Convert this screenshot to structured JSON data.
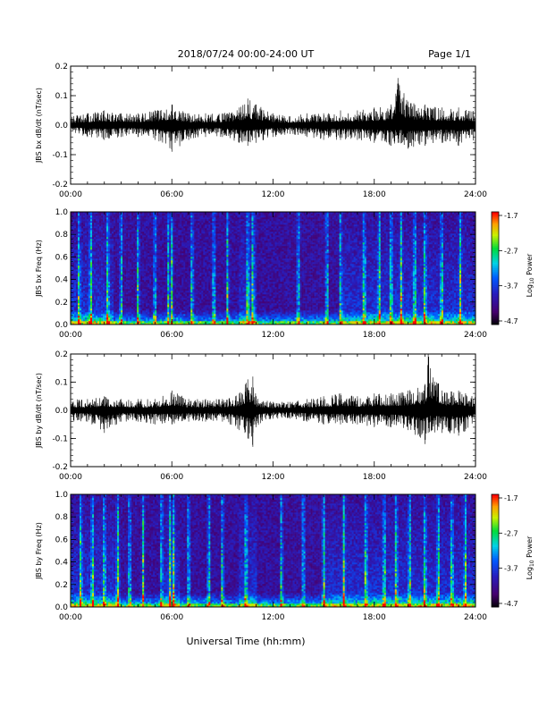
{
  "header": {
    "title": "2018/07/24  00:00-24:00 UT",
    "page": "Page 1/1"
  },
  "footer": {
    "xlabel": "Universal Time (hh:mm)"
  },
  "x_ticks": [
    "00:00",
    "06:00",
    "12:00",
    "18:00",
    "24:00"
  ],
  "chart_data": [
    {
      "type": "line",
      "ylabel": "JBS bx dB/dt (nT/sec)",
      "xlim_hours": [
        0,
        24
      ],
      "ylim": [
        -0.2,
        0.2
      ],
      "y_ticks": [
        "0.2",
        "0.1",
        "0.0",
        "-0.1",
        "-0.2"
      ],
      "grid": false,
      "series": [
        {
          "envelope_hours": [
            0,
            1,
            2,
            3,
            4,
            5,
            6,
            7,
            8,
            9,
            10,
            10.5,
            11,
            12,
            13,
            14,
            15,
            16,
            17,
            18,
            19,
            19.4,
            20,
            21,
            22,
            23,
            24
          ],
          "max": [
            0.03,
            0.04,
            0.05,
            0.04,
            0.04,
            0.05,
            0.07,
            0.04,
            0.04,
            0.04,
            0.06,
            0.09,
            0.07,
            0.04,
            0.03,
            0.04,
            0.04,
            0.05,
            0.05,
            0.06,
            0.07,
            0.16,
            0.08,
            0.07,
            0.06,
            0.06,
            0.05
          ],
          "min": [
            -0.03,
            -0.04,
            -0.05,
            -0.04,
            -0.04,
            -0.05,
            -0.09,
            -0.05,
            -0.04,
            -0.04,
            -0.06,
            -0.07,
            -0.06,
            -0.04,
            -0.03,
            -0.04,
            -0.05,
            -0.05,
            -0.05,
            -0.06,
            -0.07,
            -0.06,
            -0.08,
            -0.07,
            -0.06,
            -0.07,
            -0.05
          ]
        }
      ]
    },
    {
      "type": "heatmap",
      "ylabel": "JBS bx Freq (Hz)",
      "xlim_hours": [
        0,
        24
      ],
      "ylim": [
        0,
        1.0
      ],
      "y_ticks": [
        "1.0",
        "0.8",
        "0.6",
        "0.4",
        "0.2",
        "0.0"
      ],
      "colorbar": {
        "label": "Log10 Power",
        "label_base": "Log",
        "label_sub": "10",
        "label_rest": " Power",
        "ticks": [
          "-1.7",
          "-2.7",
          "-3.7",
          "-4.7"
        ],
        "range": [
          -4.7,
          -1.7
        ]
      },
      "event_hours": [
        0.5,
        1.2,
        2.2,
        3.0,
        4.0,
        5.0,
        5.8,
        6.0,
        7.2,
        8.5,
        9.3,
        10.5,
        10.8,
        13.5,
        15.2,
        16.0,
        17.4,
        18.3,
        19.0,
        19.6,
        20.4,
        21.0,
        22.0,
        23.1
      ],
      "active_intervals_hours": [
        [
          0,
          2.5
        ],
        [
          10,
          11
        ],
        [
          16,
          24
        ]
      ]
    },
    {
      "type": "line",
      "ylabel": "JBS by dB/dt (nT/sec)",
      "xlim_hours": [
        0,
        24
      ],
      "ylim": [
        -0.2,
        0.2
      ],
      "y_ticks": [
        "0.2",
        "0.1",
        "0.0",
        "-0.1",
        "-0.2"
      ],
      "grid": false,
      "series": [
        {
          "envelope_hours": [
            0,
            1,
            2,
            3,
            4,
            5,
            6,
            7,
            8,
            9,
            10,
            10.5,
            10.8,
            11,
            12,
            13,
            14,
            15,
            16,
            17,
            18,
            19,
            20,
            21,
            21.2,
            22,
            23,
            24
          ],
          "max": [
            0.04,
            0.04,
            0.05,
            0.04,
            0.04,
            0.04,
            0.07,
            0.04,
            0.04,
            0.04,
            0.06,
            0.11,
            0.12,
            0.05,
            0.03,
            0.03,
            0.04,
            0.05,
            0.06,
            0.05,
            0.06,
            0.06,
            0.07,
            0.09,
            0.2,
            0.07,
            0.07,
            0.05
          ],
          "min": [
            -0.04,
            -0.04,
            -0.08,
            -0.04,
            -0.04,
            -0.05,
            -0.05,
            -0.04,
            -0.04,
            -0.04,
            -0.07,
            -0.1,
            -0.13,
            -0.06,
            -0.03,
            -0.03,
            -0.04,
            -0.05,
            -0.05,
            -0.05,
            -0.06,
            -0.06,
            -0.07,
            -0.12,
            -0.08,
            -0.08,
            -0.09,
            -0.05
          ]
        }
      ]
    },
    {
      "type": "heatmap",
      "ylabel": "JBS by Freq (Hz)",
      "xlim_hours": [
        0,
        24
      ],
      "ylim": [
        0,
        1.0
      ],
      "y_ticks": [
        "1.0",
        "0.8",
        "0.6",
        "0.4",
        "0.2",
        "0.0"
      ],
      "colorbar": {
        "label": "Log10 Power",
        "label_base": "Log",
        "label_sub": "10",
        "label_rest": " Power",
        "ticks": [
          "-1.7",
          "-2.7",
          "-3.7",
          "-4.7"
        ],
        "range": [
          -4.7,
          -1.7
        ]
      },
      "event_hours": [
        0.6,
        1.3,
        2.0,
        2.8,
        3.5,
        4.3,
        5.4,
        5.9,
        6.1,
        7.0,
        8.2,
        9.0,
        10.4,
        12.5,
        13.8,
        15.0,
        16.2,
        17.5,
        18.6,
        19.3,
        20.1,
        21.0,
        21.8,
        22.6,
        23.4
      ],
      "active_intervals_hours": [
        [
          0,
          3
        ],
        [
          5.5,
          6.5
        ],
        [
          10,
          11
        ],
        [
          15,
          24
        ]
      ]
    }
  ]
}
